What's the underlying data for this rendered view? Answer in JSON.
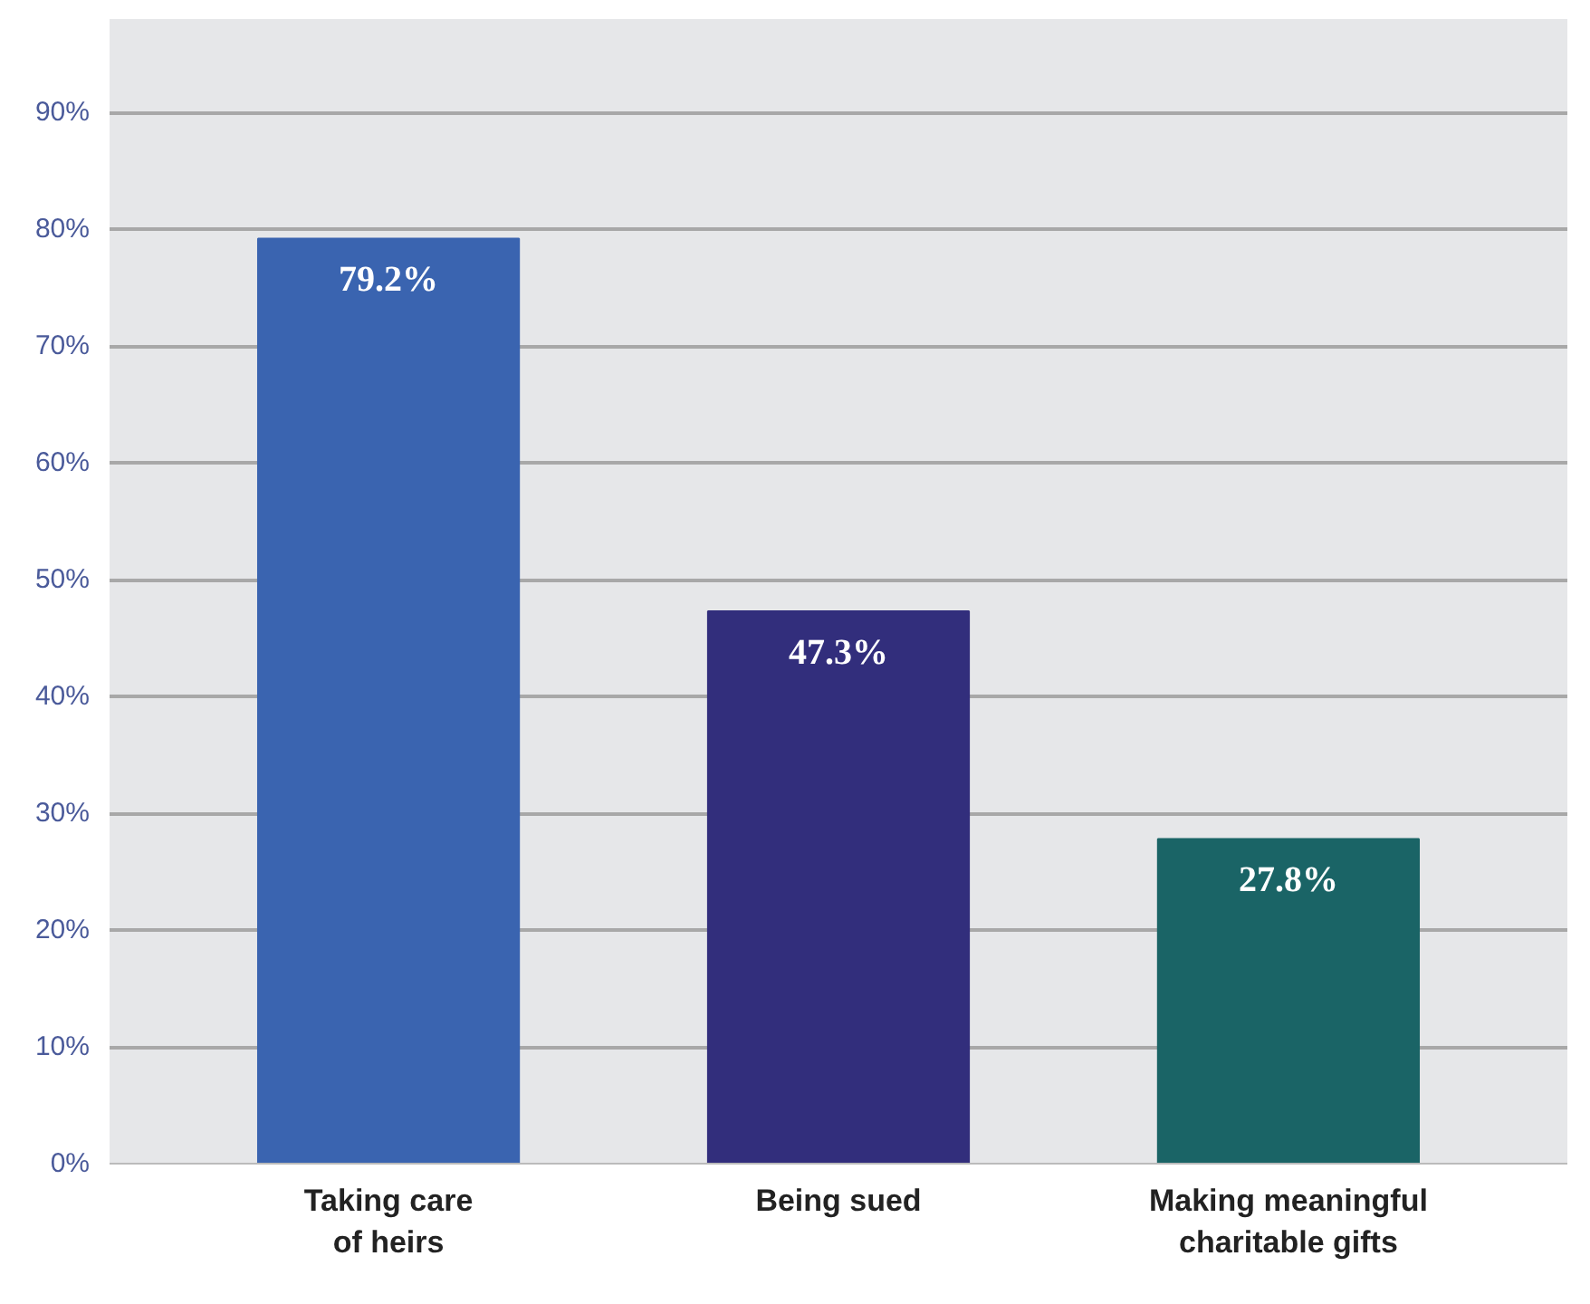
{
  "chart_data": {
    "type": "bar",
    "categories": [
      "Taking care of heirs",
      "Being sued",
      "Making meaningful charitable gifts"
    ],
    "values": [
      79.2,
      47.3,
      27.8
    ],
    "colors": [
      "#3a64b0",
      "#322e7c",
      "#1a6466"
    ],
    "value_labels": [
      "79.2%",
      "47.3%",
      "27.8%"
    ],
    "ylim": [
      0,
      98
    ],
    "yticks": [
      {
        "value": 0,
        "label": "0%"
      },
      {
        "value": 10,
        "label": "10%"
      },
      {
        "value": 20,
        "label": "20%"
      },
      {
        "value": 30,
        "label": "30%"
      },
      {
        "value": 40,
        "label": "40%"
      },
      {
        "value": 50,
        "label": "50%"
      },
      {
        "value": 60,
        "label": "60%"
      },
      {
        "value": 70,
        "label": "70%"
      },
      {
        "value": 80,
        "label": "80%"
      },
      {
        "value": 90,
        "label": "90%"
      }
    ],
    "grid": "y"
  }
}
